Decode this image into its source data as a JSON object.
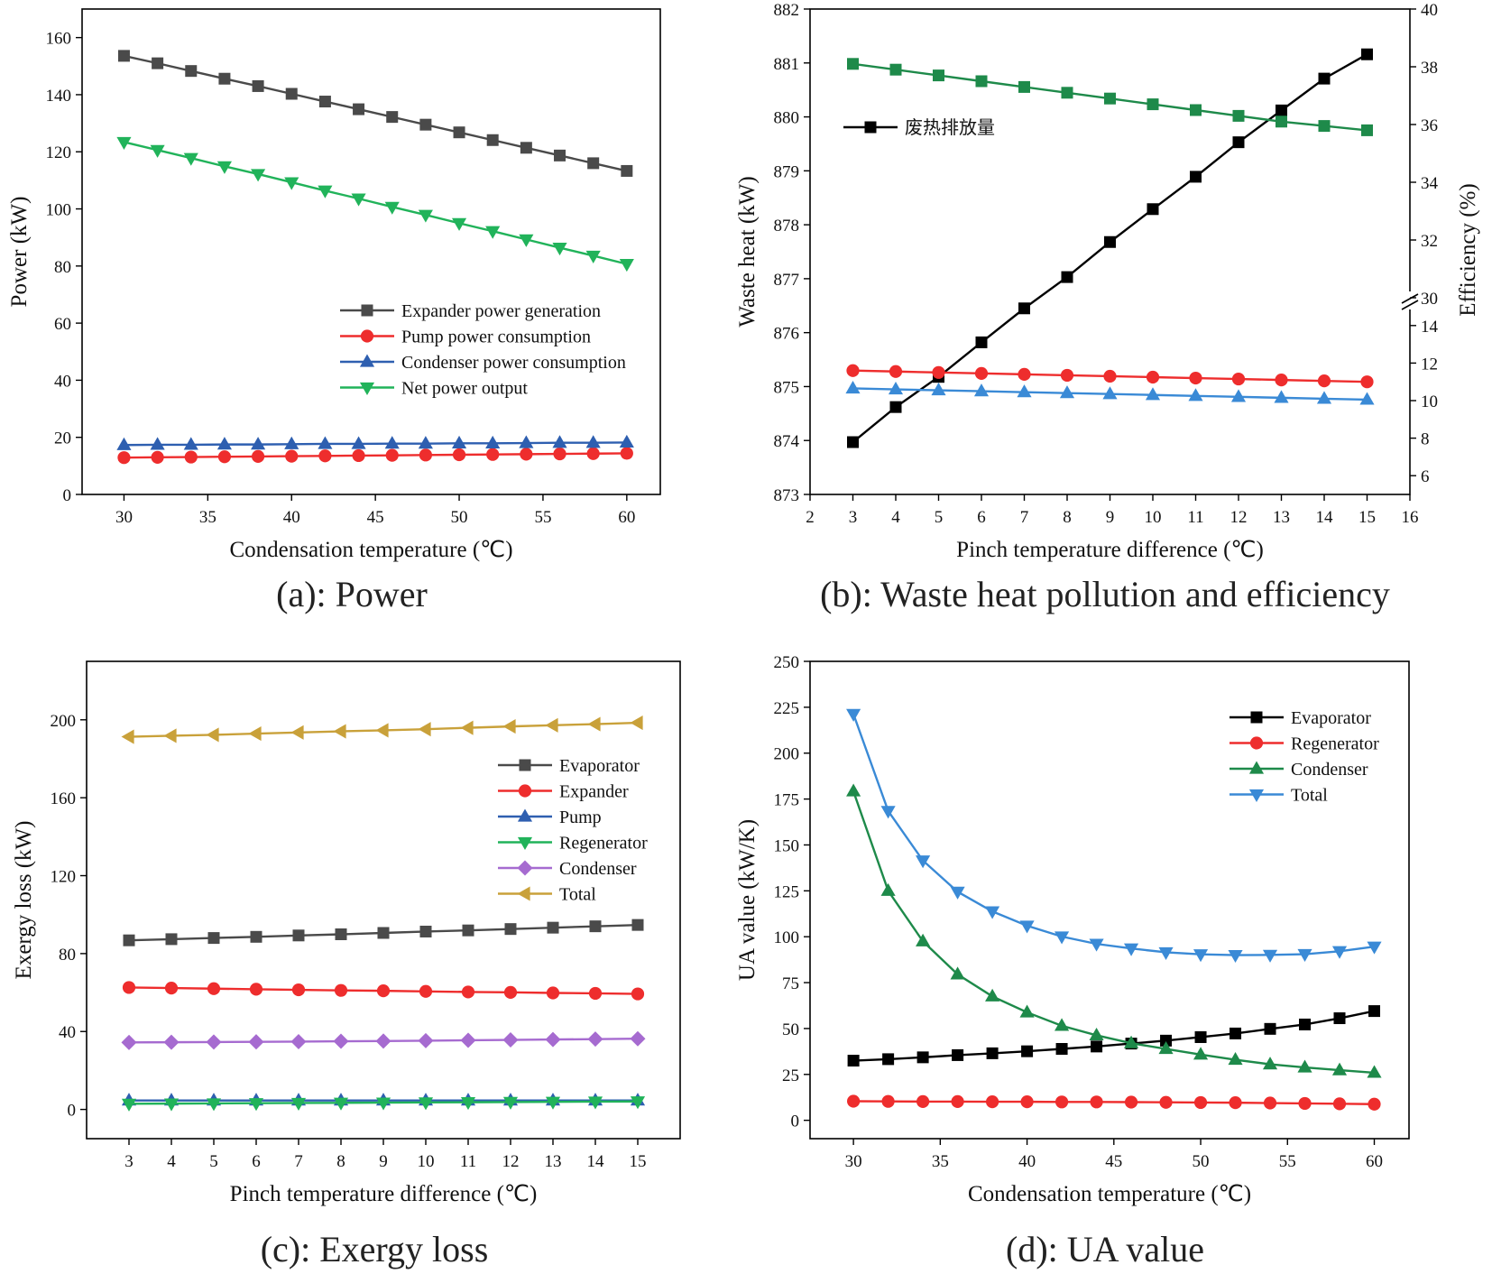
{
  "chart_data": [
    {
      "type": "line",
      "caption": "(a): Power",
      "xlabel": "Condensation temperature (℃)",
      "ylabel": "Power (kW)",
      "xlim": [
        27.5,
        62
      ],
      "ylim": [
        0,
        170
      ],
      "xticks": [
        30,
        35,
        40,
        45,
        50,
        55,
        60
      ],
      "yticks": [
        0,
        20,
        40,
        60,
        80,
        100,
        120,
        140,
        160
      ],
      "legend_position": "center-right",
      "x": [
        30,
        32,
        34,
        36,
        38,
        40,
        42,
        44,
        46,
        48,
        50,
        52,
        54,
        56,
        58,
        60
      ],
      "series": [
        {
          "name": "Expander power generation",
          "color": "#4a4a4a",
          "marker": "square",
          "values": [
            153.6,
            151.0,
            148.3,
            145.6,
            143.0,
            140.3,
            137.6,
            134.9,
            132.2,
            129.5,
            126.8,
            124.1,
            121.4,
            118.7,
            116.0,
            113.3
          ]
        },
        {
          "name": "Pump power consumption",
          "color": "#ee2d2d",
          "marker": "circle",
          "values": [
            12.9,
            13.0,
            13.1,
            13.2,
            13.3,
            13.4,
            13.5,
            13.6,
            13.7,
            13.8,
            13.9,
            14.0,
            14.1,
            14.2,
            14.3,
            14.4
          ]
        },
        {
          "name": "Condenser power consumption",
          "color": "#2e5fb0",
          "marker": "triangle-up",
          "values": [
            17.3,
            17.4,
            17.4,
            17.5,
            17.5,
            17.6,
            17.7,
            17.7,
            17.8,
            17.8,
            17.9,
            17.9,
            18.0,
            18.1,
            18.1,
            18.2
          ]
        },
        {
          "name": "Net power output",
          "color": "#21b35a",
          "marker": "triangle-down",
          "values": [
            123.4,
            120.6,
            117.8,
            114.9,
            112.2,
            109.3,
            106.4,
            103.6,
            100.7,
            97.9,
            95.0,
            92.2,
            89.3,
            86.4,
            83.6,
            80.7
          ]
        }
      ]
    },
    {
      "type": "line",
      "caption": "(b): Waste heat pollution and efficiency",
      "xlabel": "Pinch temperature difference  (℃)",
      "ylabel": "Waste heat (kW)",
      "y2label": "Efficiency (%)",
      "xlim": [
        2,
        16
      ],
      "ylim": [
        873,
        882
      ],
      "xticks": [
        2,
        3,
        4,
        5,
        6,
        7,
        8,
        9,
        10,
        11,
        12,
        13,
        14,
        15,
        16
      ],
      "yticks": [
        873,
        874,
        875,
        876,
        877,
        878,
        879,
        880,
        881,
        882
      ],
      "y2_lower_range": [
        5,
        15
      ],
      "y2_lower_ticks": [
        6,
        8,
        10,
        12,
        14
      ],
      "y2_upper_range": [
        30,
        40
      ],
      "y2_upper_ticks": [
        30,
        32,
        34,
        36,
        38,
        40
      ],
      "y2_axis_break": true,
      "legend_position": "upper-left",
      "x": [
        3,
        4,
        5,
        6,
        7,
        8,
        9,
        10,
        11,
        12,
        13,
        14,
        15
      ],
      "series": [
        {
          "name": "废热排放量",
          "axis": "left",
          "color": "#000000",
          "marker": "square",
          "values": [
            873.97,
            874.62,
            875.18,
            875.82,
            876.45,
            877.03,
            877.68,
            878.29,
            878.89,
            879.53,
            880.12,
            880.71,
            881.16
          ]
        },
        {
          "axis": "right",
          "color": "#1e8a4a",
          "marker": "square",
          "values": [
            38.1,
            37.9,
            37.7,
            37.5,
            37.3,
            37.1,
            36.9,
            36.7,
            36.5,
            36.3,
            36.1,
            35.95,
            35.8
          ]
        },
        {
          "axis": "right",
          "color": "#ee2d2d",
          "marker": "circle",
          "values": [
            11.6,
            11.55,
            11.5,
            11.45,
            11.4,
            11.35,
            11.3,
            11.25,
            11.2,
            11.15,
            11.1,
            11.05,
            11.0
          ]
        },
        {
          "axis": "right",
          "color": "#3a8ad6",
          "marker": "triangle-up",
          "values": [
            10.65,
            10.6,
            10.55,
            10.5,
            10.45,
            10.4,
            10.35,
            10.3,
            10.25,
            10.2,
            10.15,
            10.1,
            10.05
          ]
        }
      ]
    },
    {
      "type": "line",
      "caption": "(c): Exergy loss",
      "xlabel": "Pinch temperature difference (℃)",
      "ylabel": "Exergy loss (kW)",
      "xlim": [
        2,
        16
      ],
      "ylim": [
        -15,
        230
      ],
      "xticks": [
        3,
        4,
        5,
        6,
        7,
        8,
        9,
        10,
        11,
        12,
        13,
        14,
        15
      ],
      "yticks": [
        0,
        40,
        80,
        120,
        160,
        200
      ],
      "legend_position": "center-right",
      "x": [
        3,
        4,
        5,
        6,
        7,
        8,
        9,
        10,
        11,
        12,
        13,
        14,
        15
      ],
      "series": [
        {
          "name": "Evaporator",
          "color": "#4a4a4a",
          "marker": "square",
          "values": [
            86.8,
            87.4,
            88.0,
            88.6,
            89.3,
            89.9,
            90.6,
            91.3,
            91.9,
            92.6,
            93.3,
            94.0,
            94.7
          ]
        },
        {
          "name": "Expander",
          "color": "#ee2d2d",
          "marker": "circle",
          "values": [
            62.6,
            62.3,
            62.0,
            61.7,
            61.4,
            61.1,
            60.9,
            60.6,
            60.3,
            60.1,
            59.8,
            59.6,
            59.3
          ]
        },
        {
          "name": "Pump",
          "color": "#2e5fb0",
          "marker": "triangle-up",
          "values": [
            4.6,
            4.6,
            4.6,
            4.6,
            4.6,
            4.6,
            4.6,
            4.6,
            4.6,
            4.6,
            4.6,
            4.6,
            4.6
          ]
        },
        {
          "name": "Regenerator",
          "color": "#21b35a",
          "marker": "triangle-down",
          "values": [
            2.9,
            3.0,
            3.1,
            3.2,
            3.3,
            3.4,
            3.5,
            3.6,
            3.7,
            3.8,
            3.9,
            4.0,
            4.1
          ]
        },
        {
          "name": "Condenser",
          "color": "#a66bd0",
          "marker": "diamond",
          "values": [
            34.4,
            34.5,
            34.6,
            34.7,
            34.8,
            35.0,
            35.1,
            35.3,
            35.5,
            35.7,
            35.9,
            36.1,
            36.3
          ]
        },
        {
          "name": "Total",
          "color": "#c9a13a",
          "marker": "triangle-left",
          "values": [
            191.3,
            191.8,
            192.3,
            192.9,
            193.5,
            194.1,
            194.6,
            195.2,
            195.9,
            196.6,
            197.2,
            197.8,
            198.5
          ]
        }
      ]
    },
    {
      "type": "line",
      "caption": "(d): UA value",
      "xlabel": "Condensation temperature (℃)",
      "ylabel": "UA value (kW/K)",
      "xlim": [
        27.5,
        62
      ],
      "ylim": [
        -10,
        250
      ],
      "xticks": [
        30,
        35,
        40,
        45,
        50,
        55,
        60
      ],
      "yticks": [
        0,
        25,
        50,
        75,
        100,
        125,
        150,
        175,
        200,
        225,
        250
      ],
      "legend_position": "upper-right",
      "x": [
        30,
        32,
        34,
        36,
        38,
        40,
        42,
        44,
        46,
        48,
        50,
        52,
        54,
        56,
        58,
        60
      ],
      "series": [
        {
          "name": "Evaporator",
          "color": "#000000",
          "marker": "square",
          "values": [
            32.5,
            33.3,
            34.3,
            35.5,
            36.5,
            37.6,
            38.9,
            40.2,
            41.8,
            43.4,
            45.3,
            47.3,
            49.8,
            52.2,
            55.6,
            59.5
          ]
        },
        {
          "name": "Regenerator",
          "color": "#ee2d2d",
          "marker": "circle",
          "values": [
            10.4,
            10.3,
            10.2,
            10.2,
            10.1,
            10.1,
            10.0,
            10.0,
            9.9,
            9.8,
            9.7,
            9.6,
            9.4,
            9.2,
            9.0,
            8.8
          ]
        },
        {
          "name": "Condenser",
          "color": "#1e8a4a",
          "marker": "triangle-up",
          "values": [
            179.2,
            125.0,
            97.5,
            79.5,
            67.5,
            58.8,
            51.5,
            46.3,
            42.0,
            38.9,
            35.8,
            33.0,
            30.5,
            28.8,
            27.3,
            25.9
          ]
        },
        {
          "name": "Total",
          "color": "#3a8ad6",
          "marker": "triangle-down",
          "values": [
            221.3,
            168.5,
            141.5,
            124.5,
            113.8,
            106.0,
            100.1,
            96.1,
            93.6,
            91.5,
            90.4,
            90.0,
            90.1,
            90.5,
            92.1,
            94.6
          ]
        }
      ]
    }
  ]
}
